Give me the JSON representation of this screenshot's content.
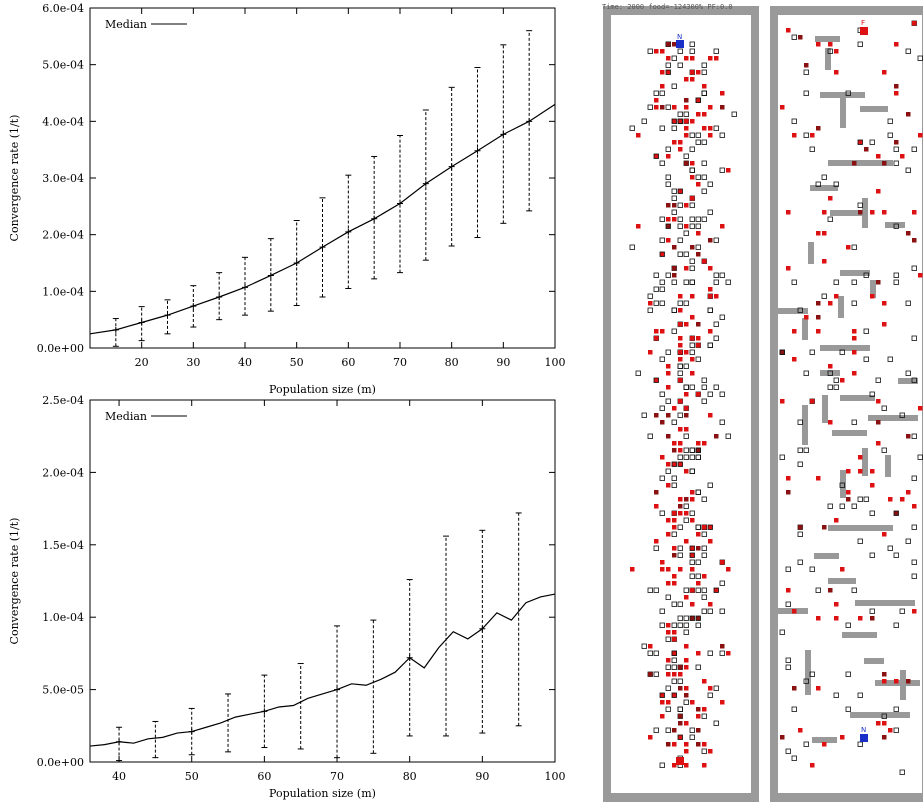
{
  "chart_data": [
    {
      "type": "line",
      "xlabel": "Population size (m)",
      "ylabel": "Convergence rate (1/t)",
      "xlim": [
        10,
        100
      ],
      "ylim": [
        0,
        0.0006
      ],
      "xticks": [
        20,
        30,
        40,
        50,
        60,
        70,
        80,
        90,
        100
      ],
      "xtick_labels": [
        "20",
        "30",
        "40",
        "50",
        "60",
        "70",
        "80",
        "90",
        "100"
      ],
      "yticks": [
        0,
        0.0001,
        0.0002,
        0.0003,
        0.0004,
        0.0005,
        0.0006
      ],
      "ytick_labels": [
        "0.0e+00",
        "1.0e-04",
        "2.0e-04",
        "3.0e-04",
        "4.0e-04",
        "5.0e-04",
        "6.0e-04"
      ],
      "legend": "top-left",
      "grid": false,
      "series": [
        {
          "name": "Median",
          "x": [
            10,
            15,
            20,
            25,
            30,
            35,
            40,
            45,
            50,
            55,
            60,
            65,
            70,
            75,
            80,
            85,
            90,
            95,
            100
          ],
          "y": [
            2.5e-05,
            3.2e-05,
            4.5e-05,
            5.8e-05,
            7.4e-05,
            9e-05,
            0.000107,
            0.000128,
            0.00015,
            0.000178,
            0.000205,
            0.000228,
            0.000255,
            0.00029,
            0.00032,
            0.000348,
            0.000377,
            0.0004,
            0.00043
          ]
        }
      ],
      "errorbars": {
        "x": [
          15,
          20,
          25,
          30,
          35,
          40,
          45,
          50,
          55,
          60,
          65,
          70,
          75,
          80,
          85,
          90,
          95
        ],
        "low": [
          3e-06,
          1.3e-05,
          2.5e-05,
          3.7e-05,
          5e-05,
          5.8e-05,
          6.5e-05,
          7.5e-05,
          9e-05,
          0.000105,
          0.000122,
          0.000133,
          0.000155,
          0.00018,
          0.000195,
          0.00022,
          0.000242
        ],
        "high": [
          5.2e-05,
          7.3e-05,
          8.5e-05,
          0.00011,
          0.000133,
          0.00016,
          0.000193,
          0.000225,
          0.000265,
          0.000305,
          0.000338,
          0.000375,
          0.00042,
          0.00046,
          0.000495,
          0.000535,
          0.00056
        ]
      }
    },
    {
      "type": "line",
      "xlabel": "Population size (m)",
      "ylabel": "Convergence rate (1/t)",
      "xlim": [
        36,
        100
      ],
      "ylim": [
        0,
        0.00025
      ],
      "xticks": [
        40,
        50,
        60,
        70,
        80,
        90,
        100
      ],
      "xtick_labels": [
        "40",
        "50",
        "60",
        "70",
        "80",
        "90",
        "100"
      ],
      "yticks": [
        0,
        5e-05,
        0.0001,
        0.00015,
        0.0002,
        0.00025
      ],
      "ytick_labels": [
        "0.0e+00",
        "5.0e-05",
        "1.0e-04",
        "1.5e-04",
        "2.0e-04",
        "2.5e-04"
      ],
      "legend": "top-left",
      "grid": false,
      "series": [
        {
          "name": "Median",
          "x": [
            36,
            38,
            40,
            42,
            44,
            46,
            48,
            50,
            52,
            54,
            56,
            58,
            60,
            62,
            64,
            66,
            68,
            70,
            72,
            74,
            76,
            78,
            80,
            82,
            84,
            86,
            88,
            90,
            92,
            94,
            96,
            98,
            100
          ],
          "y": [
            1.1e-05,
            1.2e-05,
            1.4e-05,
            1.3e-05,
            1.6e-05,
            1.7e-05,
            2e-05,
            2.1e-05,
            2.4e-05,
            2.7e-05,
            3.1e-05,
            3.3e-05,
            3.5e-05,
            3.8e-05,
            3.9e-05,
            4.4e-05,
            4.7e-05,
            5e-05,
            5.4e-05,
            5.3e-05,
            5.7e-05,
            6.2e-05,
            7.2e-05,
            6.5e-05,
            7.9e-05,
            9e-05,
            8.5e-05,
            9.2e-05,
            0.000103,
            9.8e-05,
            0.00011,
            0.000114,
            0.000116
          ]
        }
      ],
      "errorbars": {
        "x": [
          40,
          45,
          50,
          55,
          60,
          65,
          70,
          75,
          80,
          85,
          90,
          95
        ],
        "low": [
          1e-06,
          3e-06,
          5e-06,
          7e-06,
          1e-05,
          9e-06,
          3e-06,
          6e-06,
          1.8e-05,
          1.8e-05,
          2e-05,
          2.5e-05
        ],
        "high": [
          2.4e-05,
          2.8e-05,
          3.7e-05,
          4.7e-05,
          6e-05,
          6.8e-05,
          9.4e-05,
          9.8e-05,
          0.000126,
          0.000156,
          0.00016,
          0.000172
        ]
      }
    }
  ],
  "simulation": {
    "status_text": "Time:  2000 food=-124300% PF:0.0",
    "nest_label": "N",
    "food_label": "F",
    "colors": {
      "frame": "#9a9a9a",
      "wall": "#999999",
      "ant": "#dd1111",
      "ant_dark": "#8a1111",
      "pheromone": "#111111",
      "nest": "#1a2ec8",
      "food": "#dd1111"
    }
  }
}
